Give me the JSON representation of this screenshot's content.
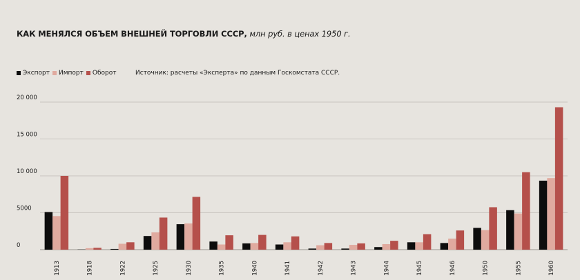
{
  "title_bold": "КАК МЕНЯЛСЯ ОБЪЕМ ВНЕШНЕЙ ТОРГОВЛИ СССР,",
  "title_italic": " млн руб. в ценах 1950 г.",
  "source": "Источник: расчеты «Эксперта» по данным Госкомстата СССР.",
  "colors": {
    "export": "#0d0d0d",
    "import": "#e0aa9f",
    "turnover": "#b5504b",
    "grid": "#c9c5bf"
  },
  "chart_data": {
    "type": "bar",
    "categories": [
      "1913",
      "1918",
      "1922",
      "1925",
      "1930",
      "1935",
      "1940",
      "1941",
      "1942",
      "1943",
      "1944",
      "1945",
      "1946",
      "1950",
      "1955",
      "1960"
    ],
    "series": [
      {
        "name": "Экспорт",
        "values": [
          5100,
          30,
          100,
          1850,
          3450,
          1100,
          850,
          700,
          150,
          150,
          350,
          1000,
          900,
          2950,
          5350,
          9350
        ]
      },
      {
        "name": "Импорт",
        "values": [
          4550,
          200,
          800,
          2350,
          3550,
          700,
          900,
          1000,
          600,
          650,
          750,
          1000,
          1500,
          2650,
          4900,
          9700
        ]
      },
      {
        "name": "Оборот",
        "values": [
          10000,
          250,
          1000,
          4350,
          7150,
          1950,
          2000,
          1800,
          900,
          850,
          1200,
          2100,
          2600,
          5750,
          10500,
          19300
        ]
      }
    ],
    "yticks": [
      0,
      5000,
      10000,
      15000,
      20000
    ],
    "ytick_labels": [
      "0",
      "5000",
      "10 000",
      "15 000",
      "20 000"
    ],
    "ylim": [
      0,
      20000
    ],
    "grid": true,
    "legend_position": "top-left"
  }
}
